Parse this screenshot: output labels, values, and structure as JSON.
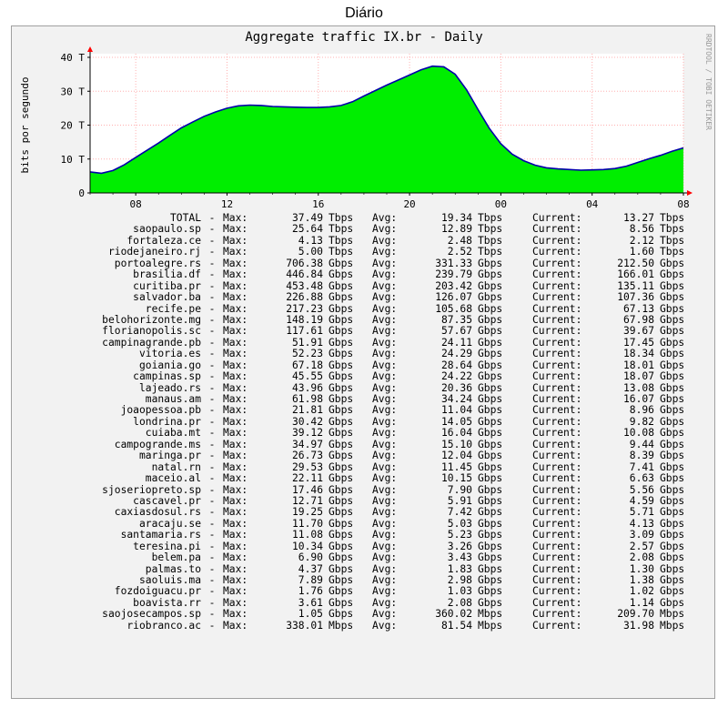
{
  "page_heading": "Diário",
  "watermark": "RRDTOOL / TOBI OETIKER",
  "chart_data": {
    "type": "area",
    "title": "Aggregate traffic IX.br - Daily",
    "ylabel": "bits por segundo",
    "ylim": [
      0,
      40
    ],
    "y_ticks": [
      "0",
      "10 T",
      "20 T",
      "30 T",
      "40 T"
    ],
    "x_ticks": [
      "08",
      "12",
      "16",
      "20",
      "00",
      "04",
      "08"
    ],
    "grid": true,
    "colors": {
      "fill": "#00ee00",
      "line": "#0000aa",
      "grid": "#ffb0b0",
      "axis": "#000000",
      "arrow": "#ff0000"
    },
    "series": [
      {
        "x": [
          "06:00",
          "06:30",
          "07:00",
          "07:30",
          "08:00",
          "08:30",
          "09:00",
          "09:30",
          "10:00",
          "10:30",
          "11:00",
          "11:30",
          "12:00",
          "12:30",
          "13:00",
          "13:30",
          "14:00",
          "14:30",
          "15:00",
          "15:30",
          "16:00",
          "16:30",
          "17:00",
          "17:30",
          "18:00",
          "18:30",
          "19:00",
          "19:30",
          "20:00",
          "20:30",
          "21:00",
          "21:30",
          "22:00",
          "22:30",
          "23:00",
          "23:30",
          "00:00",
          "00:30",
          "01:00",
          "01:30",
          "02:00",
          "02:30",
          "03:00",
          "03:30",
          "04:00",
          "04:30",
          "05:00",
          "05:30",
          "06:00",
          "06:30",
          "07:00",
          "07:30",
          "08:00"
        ],
        "values": [
          6.2,
          5.8,
          6.6,
          8.3,
          10.5,
          12.6,
          14.7,
          17.0,
          19.2,
          20.9,
          22.6,
          23.9,
          25.0,
          25.7,
          25.9,
          25.8,
          25.5,
          25.4,
          25.3,
          25.2,
          25.2,
          25.4,
          25.8,
          26.9,
          28.6,
          30.2,
          31.8,
          33.3,
          34.8,
          36.3,
          37.4,
          37.2,
          35.0,
          30.4,
          24.6,
          19.0,
          14.5,
          11.4,
          9.5,
          8.2,
          7.4,
          7.1,
          6.9,
          6.7,
          6.8,
          6.9,
          7.2,
          7.9,
          9.0,
          10.1,
          11.1,
          12.3,
          13.3
        ]
      }
    ]
  },
  "legend": {
    "labels": {
      "dash": "-",
      "max": "Max:",
      "avg": "Avg:",
      "current": "Current:"
    },
    "rows": [
      {
        "name": "TOTAL",
        "max": "37.49",
        "max_unit": "Tbps",
        "avg": "19.34",
        "avg_unit": "Tbps",
        "cur": "13.27",
        "cur_unit": "Tbps"
      },
      {
        "name": "saopaulo.sp",
        "max": "25.64",
        "max_unit": "Tbps",
        "avg": "12.89",
        "avg_unit": "Tbps",
        "cur": "8.56",
        "cur_unit": "Tbps"
      },
      {
        "name": "fortaleza.ce",
        "max": "4.13",
        "max_unit": "Tbps",
        "avg": "2.48",
        "avg_unit": "Tbps",
        "cur": "2.12",
        "cur_unit": "Tbps"
      },
      {
        "name": "riodejaneiro.rj",
        "max": "5.00",
        "max_unit": "Tbps",
        "avg": "2.52",
        "avg_unit": "Tbps",
        "cur": "1.60",
        "cur_unit": "Tbps"
      },
      {
        "name": "portoalegre.rs",
        "max": "706.38",
        "max_unit": "Gbps",
        "avg": "331.33",
        "avg_unit": "Gbps",
        "cur": "212.50",
        "cur_unit": "Gbps"
      },
      {
        "name": "brasilia.df",
        "max": "446.84",
        "max_unit": "Gbps",
        "avg": "239.79",
        "avg_unit": "Gbps",
        "cur": "166.01",
        "cur_unit": "Gbps"
      },
      {
        "name": "curitiba.pr",
        "max": "453.48",
        "max_unit": "Gbps",
        "avg": "203.42",
        "avg_unit": "Gbps",
        "cur": "135.11",
        "cur_unit": "Gbps"
      },
      {
        "name": "salvador.ba",
        "max": "226.88",
        "max_unit": "Gbps",
        "avg": "126.07",
        "avg_unit": "Gbps",
        "cur": "107.36",
        "cur_unit": "Gbps"
      },
      {
        "name": "recife.pe",
        "max": "217.23",
        "max_unit": "Gbps",
        "avg": "105.68",
        "avg_unit": "Gbps",
        "cur": "67.13",
        "cur_unit": "Gbps"
      },
      {
        "name": "belohorizonte.mg",
        "max": "148.19",
        "max_unit": "Gbps",
        "avg": "87.35",
        "avg_unit": "Gbps",
        "cur": "67.98",
        "cur_unit": "Gbps"
      },
      {
        "name": "florianopolis.sc",
        "max": "117.61",
        "max_unit": "Gbps",
        "avg": "57.67",
        "avg_unit": "Gbps",
        "cur": "39.67",
        "cur_unit": "Gbps"
      },
      {
        "name": "campinagrande.pb",
        "max": "51.91",
        "max_unit": "Gbps",
        "avg": "24.11",
        "avg_unit": "Gbps",
        "cur": "17.45",
        "cur_unit": "Gbps"
      },
      {
        "name": "vitoria.es",
        "max": "52.23",
        "max_unit": "Gbps",
        "avg": "24.29",
        "avg_unit": "Gbps",
        "cur": "18.34",
        "cur_unit": "Gbps"
      },
      {
        "name": "goiania.go",
        "max": "67.18",
        "max_unit": "Gbps",
        "avg": "28.64",
        "avg_unit": "Gbps",
        "cur": "18.01",
        "cur_unit": "Gbps"
      },
      {
        "name": "campinas.sp",
        "max": "45.55",
        "max_unit": "Gbps",
        "avg": "24.22",
        "avg_unit": "Gbps",
        "cur": "18.07",
        "cur_unit": "Gbps"
      },
      {
        "name": "lajeado.rs",
        "max": "43.96",
        "max_unit": "Gbps",
        "avg": "20.36",
        "avg_unit": "Gbps",
        "cur": "13.08",
        "cur_unit": "Gbps"
      },
      {
        "name": "manaus.am",
        "max": "61.98",
        "max_unit": "Gbps",
        "avg": "34.24",
        "avg_unit": "Gbps",
        "cur": "16.07",
        "cur_unit": "Gbps"
      },
      {
        "name": "joaopessoa.pb",
        "max": "21.81",
        "max_unit": "Gbps",
        "avg": "11.04",
        "avg_unit": "Gbps",
        "cur": "8.96",
        "cur_unit": "Gbps"
      },
      {
        "name": "londrina.pr",
        "max": "30.42",
        "max_unit": "Gbps",
        "avg": "14.05",
        "avg_unit": "Gbps",
        "cur": "9.82",
        "cur_unit": "Gbps"
      },
      {
        "name": "cuiaba.mt",
        "max": "39.12",
        "max_unit": "Gbps",
        "avg": "16.04",
        "avg_unit": "Gbps",
        "cur": "10.08",
        "cur_unit": "Gbps"
      },
      {
        "name": "campogrande.ms",
        "max": "34.97",
        "max_unit": "Gbps",
        "avg": "15.10",
        "avg_unit": "Gbps",
        "cur": "9.44",
        "cur_unit": "Gbps"
      },
      {
        "name": "maringa.pr",
        "max": "26.73",
        "max_unit": "Gbps",
        "avg": "12.04",
        "avg_unit": "Gbps",
        "cur": "8.39",
        "cur_unit": "Gbps"
      },
      {
        "name": "natal.rn",
        "max": "29.53",
        "max_unit": "Gbps",
        "avg": "11.45",
        "avg_unit": "Gbps",
        "cur": "7.41",
        "cur_unit": "Gbps"
      },
      {
        "name": "maceio.al",
        "max": "22.11",
        "max_unit": "Gbps",
        "avg": "10.15",
        "avg_unit": "Gbps",
        "cur": "6.63",
        "cur_unit": "Gbps"
      },
      {
        "name": "sjoseriopreto.sp",
        "max": "17.46",
        "max_unit": "Gbps",
        "avg": "7.90",
        "avg_unit": "Gbps",
        "cur": "5.56",
        "cur_unit": "Gbps"
      },
      {
        "name": "cascavel.pr",
        "max": "12.71",
        "max_unit": "Gbps",
        "avg": "5.91",
        "avg_unit": "Gbps",
        "cur": "4.59",
        "cur_unit": "Gbps"
      },
      {
        "name": "caxiasdosul.rs",
        "max": "19.25",
        "max_unit": "Gbps",
        "avg": "7.42",
        "avg_unit": "Gbps",
        "cur": "5.71",
        "cur_unit": "Gbps"
      },
      {
        "name": "aracaju.se",
        "max": "11.70",
        "max_unit": "Gbps",
        "avg": "5.03",
        "avg_unit": "Gbps",
        "cur": "4.13",
        "cur_unit": "Gbps"
      },
      {
        "name": "santamaria.rs",
        "max": "11.08",
        "max_unit": "Gbps",
        "avg": "5.23",
        "avg_unit": "Gbps",
        "cur": "3.09",
        "cur_unit": "Gbps"
      },
      {
        "name": "teresina.pi",
        "max": "10.34",
        "max_unit": "Gbps",
        "avg": "3.26",
        "avg_unit": "Gbps",
        "cur": "2.57",
        "cur_unit": "Gbps"
      },
      {
        "name": "belem.pa",
        "max": "6.90",
        "max_unit": "Gbps",
        "avg": "3.43",
        "avg_unit": "Gbps",
        "cur": "2.08",
        "cur_unit": "Gbps"
      },
      {
        "name": "palmas.to",
        "max": "4.37",
        "max_unit": "Gbps",
        "avg": "1.83",
        "avg_unit": "Gbps",
        "cur": "1.30",
        "cur_unit": "Gbps"
      },
      {
        "name": "saoluis.ma",
        "max": "7.89",
        "max_unit": "Gbps",
        "avg": "2.98",
        "avg_unit": "Gbps",
        "cur": "1.38",
        "cur_unit": "Gbps"
      },
      {
        "name": "fozdoiguacu.pr",
        "max": "1.76",
        "max_unit": "Gbps",
        "avg": "1.03",
        "avg_unit": "Gbps",
        "cur": "1.02",
        "cur_unit": "Gbps"
      },
      {
        "name": "boavista.rr",
        "max": "3.61",
        "max_unit": "Gbps",
        "avg": "2.08",
        "avg_unit": "Gbps",
        "cur": "1.14",
        "cur_unit": "Gbps"
      },
      {
        "name": "saojosecampos.sp",
        "max": "1.05",
        "max_unit": "Gbps",
        "avg": "360.02",
        "avg_unit": "Mbps",
        "cur": "209.70",
        "cur_unit": "Mbps"
      },
      {
        "name": "riobranco.ac",
        "max": "338.01",
        "max_unit": "Mbps",
        "avg": "81.54",
        "avg_unit": "Mbps",
        "cur": "31.98",
        "cur_unit": "Mbps"
      }
    ]
  }
}
